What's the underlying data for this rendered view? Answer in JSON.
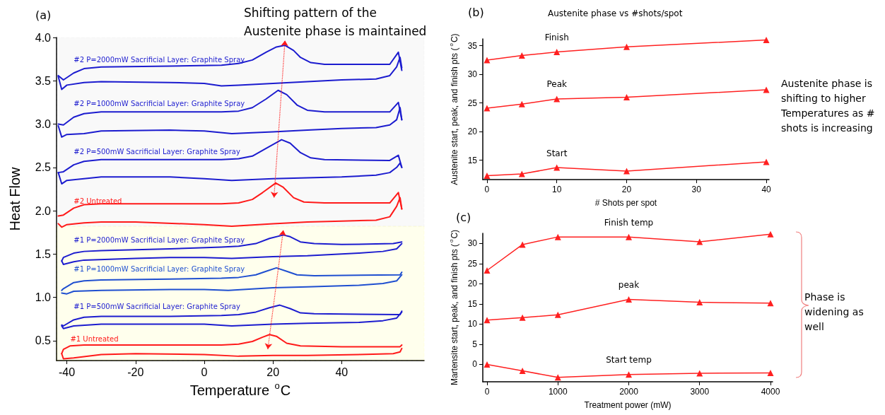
{
  "chart_data": [
    {
      "type": "line",
      "title": "(a)",
      "xlabel": "Temperature $^{o}$C",
      "ylabel": "Heat Flow",
      "annotations": [
        "Shifting pattern of the Austenite phase is maintained"
      ],
      "xlim": [
        -43,
        64
      ],
      "ylim": [
        0.27,
        4.0
      ],
      "xticks": [
        -40,
        -20,
        0,
        20,
        40
      ],
      "yticks": [
        0.5,
        {
          "value": 1,
          "label": "1.0"
        },
        1.5,
        {
          "value": 2,
          "label": "2.0"
        },
        2.5,
        {
          "value": 3,
          "label": "3.0"
        },
        3.5,
        {
          "value": 4,
          "label": "4.0"
        }
      ],
      "grid": false,
      "legend": false,
      "marker": "none",
      "line_style": "solid",
      "bands": [
        {
          "axis": "y",
          "from": 1.82,
          "to": 4.0,
          "color": "#a6a6a6"
        },
        {
          "axis": "y",
          "from": 0.27,
          "to": 1.82,
          "color": "#ffff00"
        }
      ],
      "series": [
        {
          "name": "#2 P=2000mW Sacrificial Layer: Graphite Spray",
          "color": "#1c1ccf",
          "x": [
            -42.5,
            -41,
            -38,
            -35,
            -30,
            -10,
            5,
            10,
            14,
            18,
            21,
            23.5,
            26,
            28,
            31,
            35,
            54,
            56.5,
            57.5
          ],
          "values": [
            3.56,
            3.51,
            3.59,
            3.64,
            3.66,
            3.67,
            3.68,
            3.7,
            3.74,
            3.83,
            3.89,
            3.91,
            3.85,
            3.77,
            3.71,
            3.69,
            3.69,
            3.83,
            3.62
          ]
        },
        {
          "color": "#1c1ccf",
          "x": [
            -42.5,
            -41.5,
            -40,
            -35,
            -30,
            -10,
            0,
            5,
            10,
            20,
            30,
            40,
            50,
            54,
            56,
            57,
            57.5
          ],
          "values": [
            3.55,
            3.4,
            3.45,
            3.48,
            3.49,
            3.48,
            3.47,
            3.44,
            3.45,
            3.47,
            3.49,
            3.51,
            3.52,
            3.56,
            3.66,
            3.77,
            3.65
          ]
        },
        {
          "name": "#2 P=1000mW Sacrificial Layer: Graphite Spray",
          "color": "#1c1ccf",
          "x": [
            -42.5,
            -41,
            -38,
            -35,
            -30,
            -10,
            5,
            10,
            14,
            18,
            21.5,
            24,
            27,
            30,
            35,
            54,
            56.5,
            57.5
          ],
          "values": [
            3.0,
            2.99,
            3.08,
            3.12,
            3.14,
            3.14,
            3.14,
            3.15,
            3.19,
            3.29,
            3.39,
            3.34,
            3.22,
            3.16,
            3.14,
            3.14,
            3.25,
            3.05
          ]
        },
        {
          "color": "#1c1ccf",
          "x": [
            -42.5,
            -41.5,
            -40,
            -35,
            -30,
            -10,
            0,
            8,
            20,
            30,
            40,
            50,
            54,
            56,
            57,
            57.5
          ],
          "values": [
            2.98,
            2.85,
            2.88,
            2.89,
            2.92,
            2.93,
            2.92,
            2.89,
            2.91,
            2.93,
            2.95,
            2.96,
            2.99,
            3.05,
            3.19,
            3.05
          ]
        },
        {
          "name": "#2 P=500mW Sacrificial Layer: Graphite Spray",
          "color": "#1c1ccf",
          "x": [
            -42.5,
            -41,
            -38,
            -35,
            -30,
            -10,
            5,
            10,
            14,
            18,
            22.5,
            25,
            28,
            31,
            35,
            54,
            56.5,
            57.5
          ],
          "values": [
            2.44,
            2.45,
            2.53,
            2.57,
            2.59,
            2.59,
            2.59,
            2.6,
            2.63,
            2.72,
            2.82,
            2.78,
            2.67,
            2.61,
            2.59,
            2.58,
            2.64,
            2.5
          ]
        },
        {
          "color": "#1c1ccf",
          "x": [
            -42.5,
            -41.5,
            -40,
            -35,
            -30,
            -10,
            0,
            8,
            20,
            30,
            40,
            50,
            54,
            56,
            57,
            57.5
          ],
          "values": [
            2.44,
            2.31,
            2.35,
            2.37,
            2.39,
            2.39,
            2.37,
            2.35,
            2.37,
            2.38,
            2.39,
            2.41,
            2.44,
            2.5,
            2.55,
            2.5
          ]
        },
        {
          "name": "#2 Untreated",
          "color": "#ff1a1a",
          "x": [
            -42.5,
            -41,
            -38,
            -35,
            -30,
            -10,
            5,
            10,
            14,
            17,
            20.8,
            23,
            26,
            29,
            35,
            54,
            56.5,
            57.5
          ],
          "values": [
            1.94,
            1.95,
            2.03,
            2.07,
            2.08,
            2.08,
            2.08,
            2.09,
            2.13,
            2.21,
            2.32,
            2.27,
            2.15,
            2.1,
            2.09,
            2.09,
            2.21,
            2.02
          ]
        },
        {
          "color": "#ff1a1a",
          "x": [
            -42.5,
            -41.5,
            -40,
            -35,
            -30,
            -20,
            0,
            8,
            20,
            30,
            40,
            50,
            54,
            56,
            57,
            57.5
          ],
          "values": [
            1.85,
            1.81,
            1.84,
            1.86,
            1.87,
            1.87,
            1.84,
            1.82,
            1.85,
            1.87,
            1.88,
            1.89,
            1.93,
            2.05,
            2.15,
            2.02
          ]
        },
        {
          "name": "#1 P=2000mW Sacrificial Layer: Graphite Spray",
          "color": "#1c1ccf",
          "x": [
            -41.5,
            -41,
            -38,
            -35,
            -30,
            -10,
            5,
            10,
            15,
            19,
            23,
            25,
            28,
            32,
            40,
            55,
            57.5
          ],
          "values": [
            1.42,
            1.46,
            1.51,
            1.53,
            1.54,
            1.56,
            1.58,
            1.59,
            1.62,
            1.68,
            1.72,
            1.7,
            1.64,
            1.62,
            1.61,
            1.62,
            1.64
          ]
        },
        {
          "color": "#1c1ccf",
          "x": [
            -41.5,
            -41,
            -38,
            -35,
            -20,
            -10,
            0,
            8,
            20,
            30,
            45,
            52,
            56,
            57.5
          ],
          "values": [
            1.42,
            1.38,
            1.41,
            1.43,
            1.45,
            1.46,
            1.46,
            1.45,
            1.47,
            1.48,
            1.51,
            1.53,
            1.56,
            1.62
          ]
        },
        {
          "name": "#1 P=1000mW Sacrificial Layer: Graphite Spray",
          "color": "#1f4fd0",
          "x": [
            -41.5,
            -41,
            -38,
            -35,
            -30,
            -10,
            5,
            10,
            15,
            18,
            21,
            24,
            27,
            32,
            57,
            57.5
          ],
          "values": [
            1.08,
            1.1,
            1.17,
            1.19,
            1.2,
            1.21,
            1.22,
            1.23,
            1.26,
            1.3,
            1.34,
            1.3,
            1.26,
            1.25,
            1.26,
            1.29
          ]
        },
        {
          "color": "#1f4fd0",
          "x": [
            -41.5,
            -40,
            -38,
            -30,
            -10,
            0,
            7,
            20,
            30,
            45,
            52,
            56,
            57.5
          ],
          "values": [
            1.05,
            1.04,
            1.07,
            1.08,
            1.09,
            1.09,
            1.08,
            1.11,
            1.12,
            1.14,
            1.16,
            1.19,
            1.26
          ]
        },
        {
          "name": "#1 P=500mW Sacrificial Layer: Graphite Spray",
          "color": "#1c1ccf",
          "x": [
            -41.5,
            -41,
            -38,
            -35,
            -30,
            -10,
            5,
            10,
            15,
            19,
            22,
            25,
            28,
            32,
            57,
            57.5
          ],
          "values": [
            0.68,
            0.67,
            0.74,
            0.77,
            0.78,
            0.78,
            0.79,
            0.8,
            0.83,
            0.88,
            0.91,
            0.87,
            0.82,
            0.81,
            0.8,
            0.84
          ]
        },
        {
          "color": "#1c1ccf",
          "x": [
            -41.5,
            -41,
            -38,
            -30,
            -10,
            0,
            8,
            20,
            30,
            45,
            52,
            56,
            57.5
          ],
          "values": [
            0.67,
            0.64,
            0.67,
            0.69,
            0.69,
            0.69,
            0.67,
            0.69,
            0.7,
            0.71,
            0.73,
            0.76,
            0.83
          ]
        },
        {
          "name": "#1 Untreated",
          "color": "#ff1a1a",
          "x": [
            -41.5,
            -41,
            -39,
            -35,
            -10,
            5,
            10,
            14,
            17,
            19,
            21,
            24,
            28,
            40,
            57,
            57.5
          ],
          "values": [
            0.35,
            0.4,
            0.44,
            0.45,
            0.45,
            0.45,
            0.46,
            0.49,
            0.54,
            0.57,
            0.55,
            0.47,
            0.44,
            0.43,
            0.43,
            0.45
          ]
        },
        {
          "color": "#ff1a1a",
          "x": [
            -41.5,
            -41,
            -38,
            -30,
            -20,
            0,
            10,
            20,
            30,
            45,
            55,
            57,
            57.5
          ],
          "values": [
            0.35,
            0.29,
            0.3,
            0.34,
            0.35,
            0.34,
            0.32,
            0.33,
            0.33,
            0.34,
            0.35,
            0.37,
            0.41
          ]
        }
      ]
    },
    {
      "type": "line",
      "title": "(b)",
      "subtitle": "Austenite phase vs #shots/spot",
      "xlabel": "# Shots per spot",
      "ylabel": "Austenite start, peak, and finish pts ($^{o}$C)",
      "annotations": [
        "Austenite phase is shifting to higher Temperatures as # shots is increasing"
      ],
      "x": [
        0,
        5,
        10,
        20,
        40
      ],
      "xlim": [
        -0.6,
        40.4
      ],
      "ylim": [
        11.6,
        36.2
      ],
      "xticks": [
        0,
        10,
        20,
        30,
        40
      ],
      "yticks": [
        15,
        20,
        25,
        30,
        35
      ],
      "grid": false,
      "legend": false,
      "marker": "triangle",
      "line_style": "solid",
      "series": [
        {
          "name": "Finish",
          "color": "#ff2020",
          "values": [
            32.5,
            33.3,
            33.9,
            34.8,
            36.0
          ]
        },
        {
          "name": "Peak",
          "color": "#ff2020",
          "values": [
            24.1,
            24.8,
            25.7,
            26.0,
            27.3
          ]
        },
        {
          "name": "Start",
          "color": "#ff2020",
          "values": [
            12.3,
            12.6,
            13.7,
            13.1,
            14.7
          ]
        }
      ]
    },
    {
      "type": "line",
      "title": "(c)",
      "xlabel": "Treatment power (mW)",
      "ylabel": "Martensite start, peak, and finish pts ($^{o}$C)",
      "annotations": [
        "Phase is widening as well"
      ],
      "x": [
        0,
        500,
        1000,
        2000,
        3000,
        4000
      ],
      "xlim": [
        -60,
        4030
      ],
      "ylim": [
        -4.3,
        32.5
      ],
      "xticks": [
        0,
        1000,
        2000,
        3000,
        4000
      ],
      "yticks": [
        0,
        5,
        10,
        15,
        20,
        25,
        30
      ],
      "grid": false,
      "legend": false,
      "marker": "triangle",
      "line_style": "solid",
      "series": [
        {
          "name": "Finish temp",
          "color": "#ff2020",
          "values": [
            23.3,
            29.7,
            31.6,
            31.6,
            30.4,
            32.3
          ]
        },
        {
          "name": "peak",
          "color": "#ff2020",
          "values": [
            11.0,
            11.6,
            12.3,
            16.1,
            15.4,
            15.2
          ]
        },
        {
          "name": "Start temp",
          "color": "#ff2020",
          "values": [
            0,
            -1.6,
            -3.2,
            -2.5,
            -2.2,
            -2.1
          ]
        }
      ]
    }
  ]
}
